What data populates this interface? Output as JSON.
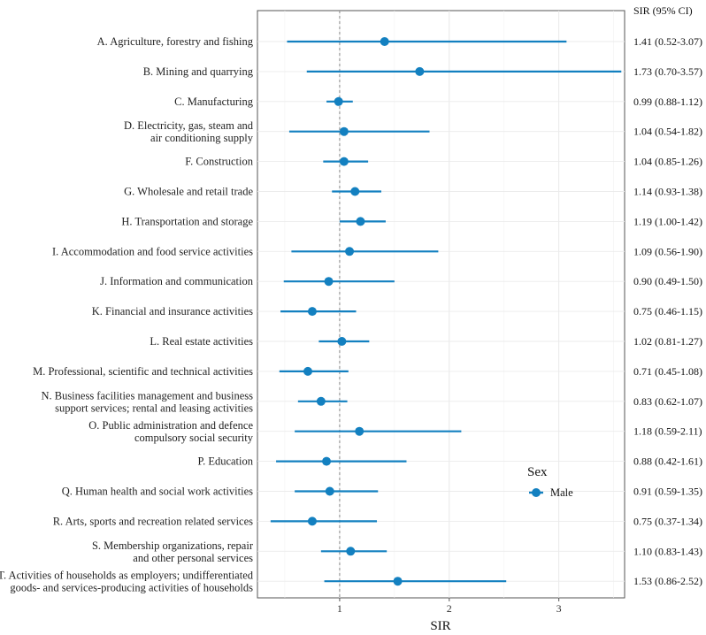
{
  "chart_data": {
    "type": "forest",
    "xlabel": "SIR",
    "ci_header": "SIR (95% CI)",
    "xlim": [
      0.25,
      3.6
    ],
    "xticks": [
      1,
      2,
      3
    ],
    "reference_line": 1,
    "legend": {
      "title": "Sex",
      "entries": [
        "Male"
      ],
      "position": "right-middle"
    },
    "series_color": "#1380c0",
    "rows": [
      {
        "label": [
          "A. Agriculture, forestry and fishing"
        ],
        "sir": 1.41,
        "lo": 0.52,
        "hi": 3.07,
        "ci_text": "1.41 (0.52-3.07)"
      },
      {
        "label": [
          "B. Mining and quarrying"
        ],
        "sir": 1.73,
        "lo": 0.7,
        "hi": 3.57,
        "ci_text": "1.73 (0.70-3.57)"
      },
      {
        "label": [
          "C. Manufacturing"
        ],
        "sir": 0.99,
        "lo": 0.88,
        "hi": 1.12,
        "ci_text": "0.99 (0.88-1.12)"
      },
      {
        "label": [
          "D. Electricity, gas, steam and",
          "air conditioning supply"
        ],
        "sir": 1.04,
        "lo": 0.54,
        "hi": 1.82,
        "ci_text": "1.04 (0.54-1.82)"
      },
      {
        "label": [
          "F. Construction"
        ],
        "sir": 1.04,
        "lo": 0.85,
        "hi": 1.26,
        "ci_text": "1.04 (0.85-1.26)"
      },
      {
        "label": [
          "G. Wholesale and retail trade"
        ],
        "sir": 1.14,
        "lo": 0.93,
        "hi": 1.38,
        "ci_text": "1.14 (0.93-1.38)"
      },
      {
        "label": [
          "H. Transportation and storage"
        ],
        "sir": 1.19,
        "lo": 1.0,
        "hi": 1.42,
        "ci_text": "1.19 (1.00-1.42)"
      },
      {
        "label": [
          "I. Accommodation and food service activities"
        ],
        "sir": 1.09,
        "lo": 0.56,
        "hi": 1.9,
        "ci_text": "1.09 (0.56-1.90)"
      },
      {
        "label": [
          "J. Information and communication"
        ],
        "sir": 0.9,
        "lo": 0.49,
        "hi": 1.5,
        "ci_text": "0.90 (0.49-1.50)"
      },
      {
        "label": [
          "K. Financial and insurance activities"
        ],
        "sir": 0.75,
        "lo": 0.46,
        "hi": 1.15,
        "ci_text": "0.75 (0.46-1.15)"
      },
      {
        "label": [
          "L. Real estate activities"
        ],
        "sir": 1.02,
        "lo": 0.81,
        "hi": 1.27,
        "ci_text": "1.02 (0.81-1.27)"
      },
      {
        "label": [
          "M. Professional, scientific and technical activities"
        ],
        "sir": 0.71,
        "lo": 0.45,
        "hi": 1.08,
        "ci_text": "0.71 (0.45-1.08)"
      },
      {
        "label": [
          "N. Business facilities management and business",
          "support services; rental and leasing activities"
        ],
        "sir": 0.83,
        "lo": 0.62,
        "hi": 1.07,
        "ci_text": "0.83 (0.62-1.07)"
      },
      {
        "label": [
          "O. Public administration and defence",
          "compulsory social security"
        ],
        "sir": 1.18,
        "lo": 0.59,
        "hi": 2.11,
        "ci_text": "1.18 (0.59-2.11)"
      },
      {
        "label": [
          "P. Education"
        ],
        "sir": 0.88,
        "lo": 0.42,
        "hi": 1.61,
        "ci_text": "0.88 (0.42-1.61)"
      },
      {
        "label": [
          "Q. Human health and social work activities"
        ],
        "sir": 0.91,
        "lo": 0.59,
        "hi": 1.35,
        "ci_text": "0.91 (0.59-1.35)"
      },
      {
        "label": [
          "R. Arts, sports and recreation related services"
        ],
        "sir": 0.75,
        "lo": 0.37,
        "hi": 1.34,
        "ci_text": "0.75 (0.37-1.34)"
      },
      {
        "label": [
          "S. Membership organizations, repair",
          "and other personal services"
        ],
        "sir": 1.1,
        "lo": 0.83,
        "hi": 1.43,
        "ci_text": "1.10 (0.83-1.43)"
      },
      {
        "label": [
          "T. Activities of households as employers; undifferentiated",
          "goods- and services-producing activities of households"
        ],
        "sir": 1.53,
        "lo": 0.86,
        "hi": 2.52,
        "ci_text": "1.53 (0.86-2.52)"
      }
    ]
  }
}
